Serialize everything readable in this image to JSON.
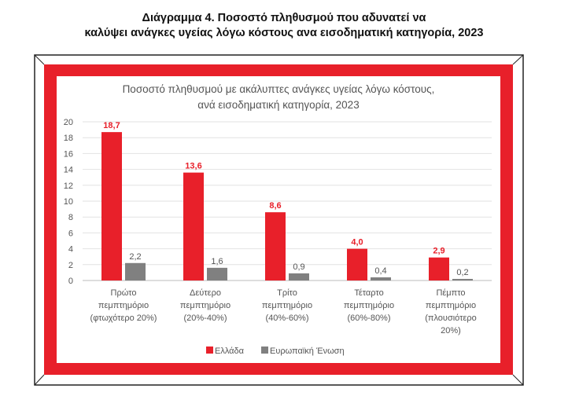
{
  "header": {
    "title_line1": "Διάγραμμα 4. Ποσοστό πληθυσμού που αδυνατεί να",
    "title_line2": "καλύψει ανάγκες υγείας λόγω κόστους ανα εισοδηματική κατηγορία, 2023"
  },
  "colors": {
    "frame_red": "#e8202a",
    "greece": "#e8202a",
    "eu": "#808080"
  },
  "chart_data": {
    "type": "bar",
    "title_line1": "Ποσοστό πληθυσμού με ακάλυπτες ανάγκες υγείας λόγω κόστους,",
    "title_line2": "ανά εισοδηματική κατηγορία, 2023",
    "categories": [
      [
        "Πρώτο",
        "πεμπτημόριο",
        "(φτωχότερο 20%)"
      ],
      [
        "Δεύτερο",
        "πεμπτημόριο",
        "(20%-40%)"
      ],
      [
        "Τρίτο",
        "πεμπτημόριο",
        "(40%-60%)"
      ],
      [
        "Τέταρτο",
        "πεμπτημόριο",
        "(60%-80%)"
      ],
      [
        "Πέμπτο",
        "πεμπτημόριο",
        "(πλουσιότερο",
        "20%)"
      ]
    ],
    "series": [
      {
        "name": "Ελλάδα",
        "values": [
          18.7,
          13.6,
          8.6,
          4.0,
          2.9
        ],
        "labels": [
          "18,7",
          "13,6",
          "8,6",
          "4,0",
          "2,9"
        ]
      },
      {
        "name": "Ευρωπαϊκή Ένωση",
        "values": [
          2.2,
          1.6,
          0.9,
          0.4,
          0.2
        ],
        "labels": [
          "2,2",
          "1,6",
          "0,9",
          "0,4",
          "0,2"
        ]
      }
    ],
    "yticks": [
      0,
      2,
      4,
      6,
      8,
      10,
      12,
      14,
      16,
      18,
      20
    ],
    "ylim": [
      0,
      20
    ],
    "grid": true,
    "legend": "bottom"
  }
}
